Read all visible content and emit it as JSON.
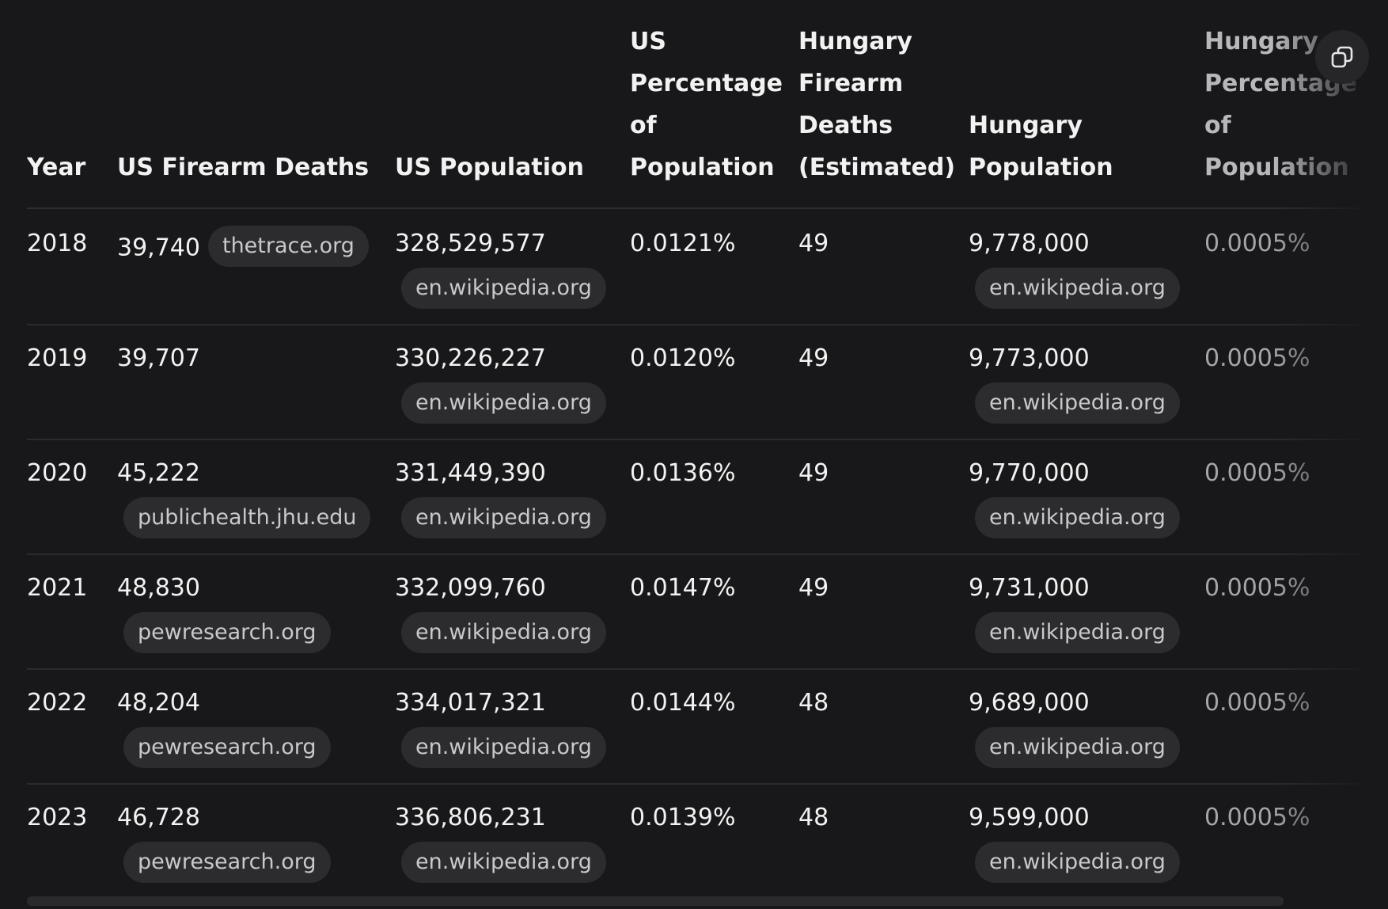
{
  "table": {
    "headers": [
      "Year",
      "US Firearm Deaths",
      "US Population",
      "US\nPercentage\nof\nPopulation",
      "Hungary\nFirearm\nDeaths\n(Estimated)",
      "Hungary\nPopulation",
      "Hungary\nPercentage\nof\nPopulation"
    ],
    "rows": [
      {
        "year": "2018",
        "us_deaths": "39,740",
        "us_deaths_source": "thetrace.org",
        "us_population": "328,529,577",
        "us_population_source": "en.wikipedia.org",
        "us_percentage": "0.0121%",
        "hu_deaths": "49",
        "hu_population": "9,778,000",
        "hu_population_source": "en.wikipedia.org",
        "hu_percentage": "0.0005%"
      },
      {
        "year": "2019",
        "us_deaths": "39,707",
        "us_deaths_source": "",
        "us_population": "330,226,227",
        "us_population_source": "en.wikipedia.org",
        "us_percentage": "0.0120%",
        "hu_deaths": "49",
        "hu_population": "9,773,000",
        "hu_population_source": "en.wikipedia.org",
        "hu_percentage": "0.0005%"
      },
      {
        "year": "2020",
        "us_deaths": "45,222",
        "us_deaths_source": "publichealth.jhu.edu",
        "us_population": "331,449,390",
        "us_population_source": "en.wikipedia.org",
        "us_percentage": "0.0136%",
        "hu_deaths": "49",
        "hu_population": "9,770,000",
        "hu_population_source": "en.wikipedia.org",
        "hu_percentage": "0.0005%"
      },
      {
        "year": "2021",
        "us_deaths": "48,830",
        "us_deaths_source": "pewresearch.org",
        "us_population": "332,099,760",
        "us_population_source": "en.wikipedia.org",
        "us_percentage": "0.0147%",
        "hu_deaths": "49",
        "hu_population": "9,731,000",
        "hu_population_source": "en.wikipedia.org",
        "hu_percentage": "0.0005%"
      },
      {
        "year": "2022",
        "us_deaths": "48,204",
        "us_deaths_source": "pewresearch.org",
        "us_population": "334,017,321",
        "us_population_source": "en.wikipedia.org",
        "us_percentage": "0.0144%",
        "hu_deaths": "48",
        "hu_population": "9,689,000",
        "hu_population_source": "en.wikipedia.org",
        "hu_percentage": "0.0005%"
      },
      {
        "year": "2023",
        "us_deaths": "46,728",
        "us_deaths_source": "pewresearch.org",
        "us_population": "336,806,231",
        "us_population_source": "en.wikipedia.org",
        "us_percentage": "0.0139%",
        "hu_deaths": "48",
        "hu_population": "9,599,000",
        "hu_population_source": "en.wikipedia.org",
        "hu_percentage": "0.0005%"
      }
    ]
  },
  "toolbar": {
    "copy_icon": "copy-icon"
  },
  "colors": {
    "background": "#18181a",
    "text": "#f2f2f2",
    "pill_bg": "#2c2c2f",
    "pill_text": "#c9c9cb",
    "divider": "#2b2b2d"
  }
}
